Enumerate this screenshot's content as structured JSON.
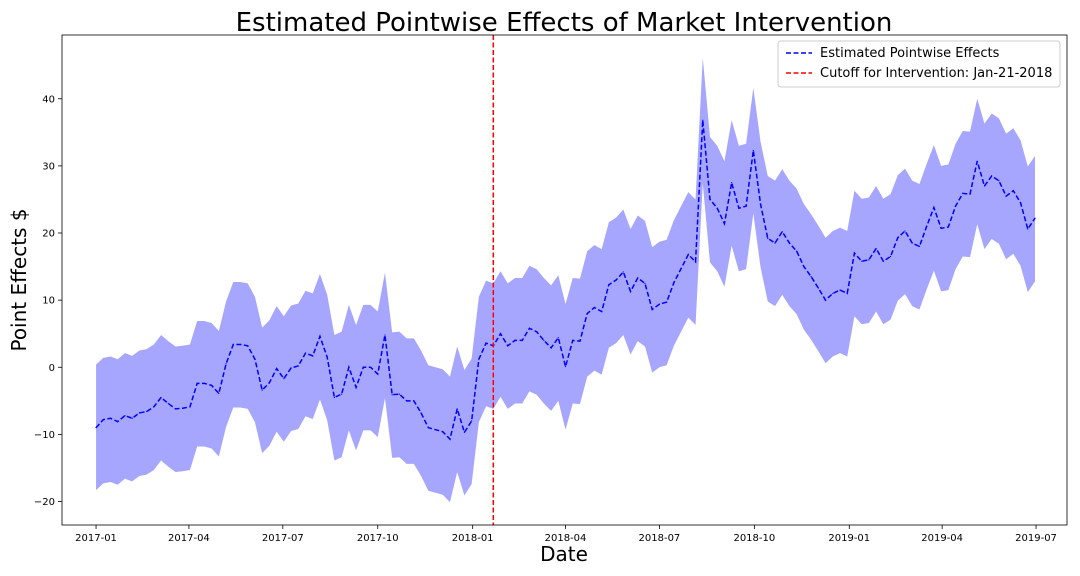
{
  "chart_data": {
    "type": "line",
    "title": "Estimated Pointwise Effects of Market Intervention",
    "xlabel": "Date",
    "ylabel": "Point Effects $",
    "ylim": [
      -23.5,
      49.5
    ],
    "xlim": [
      "2016-11-29",
      "2019-07-31"
    ],
    "x_ticks": [
      "2017-01",
      "2017-04",
      "2017-07",
      "2017-10",
      "2018-01",
      "2018-04",
      "2018-07",
      "2018-10",
      "2019-01",
      "2019-04",
      "2019-07"
    ],
    "y_ticks": [
      -20,
      -10,
      0,
      10,
      20,
      30,
      40
    ],
    "grid": false,
    "legend_position": "top-right",
    "cutoff": {
      "date": "2018-01-21",
      "label": "Cutoff for Intervention: Jan-21-2018",
      "color": "#ff0000"
    },
    "band_color": "#a6a6ff",
    "series": [
      {
        "name": "Estimated Pointwise Effects",
        "color": "#0000ff",
        "points": [
          [
            "2017-01-01",
            -9.0,
            -18.3,
            0.4
          ],
          [
            "2017-01-08",
            -7.8,
            -17.3,
            1.4
          ],
          [
            "2017-01-15",
            -7.6,
            -17.1,
            1.6
          ],
          [
            "2017-01-22",
            -8.1,
            -17.5,
            1.2
          ],
          [
            "2017-01-29",
            -7.2,
            -16.6,
            2.1
          ],
          [
            "2017-02-05",
            -7.6,
            -17.0,
            1.7
          ],
          [
            "2017-02-12",
            -6.8,
            -16.2,
            2.5
          ],
          [
            "2017-02-19",
            -6.6,
            -16.0,
            2.7
          ],
          [
            "2017-02-26",
            -5.9,
            -15.3,
            3.4
          ],
          [
            "2017-03-05",
            -4.5,
            -13.9,
            4.8
          ],
          [
            "2017-03-12",
            -5.4,
            -14.8,
            3.9
          ],
          [
            "2017-03-19",
            -6.2,
            -15.6,
            3.1
          ],
          [
            "2017-03-26",
            -6.1,
            -15.5,
            3.2
          ],
          [
            "2017-04-02",
            -5.9,
            -15.3,
            3.4
          ],
          [
            "2017-04-09",
            -2.4,
            -11.8,
            6.9
          ],
          [
            "2017-04-16",
            -2.4,
            -11.8,
            6.9
          ],
          [
            "2017-04-23",
            -2.7,
            -12.1,
            6.6
          ],
          [
            "2017-04-30",
            -3.9,
            -13.3,
            5.4
          ],
          [
            "2017-05-07",
            0.5,
            -8.9,
            9.8
          ],
          [
            "2017-05-14",
            3.4,
            -6.0,
            12.7
          ],
          [
            "2017-05-21",
            3.4,
            -6.0,
            12.7
          ],
          [
            "2017-05-28",
            3.2,
            -6.2,
            12.5
          ],
          [
            "2017-06-04",
            1.2,
            -8.2,
            10.5
          ],
          [
            "2017-06-11",
            -3.4,
            -12.8,
            5.9
          ],
          [
            "2017-06-18",
            -2.3,
            -11.7,
            7.0
          ],
          [
            "2017-06-25",
            -0.2,
            -9.6,
            9.1
          ],
          [
            "2017-07-02",
            -1.7,
            -11.1,
            7.6
          ],
          [
            "2017-07-09",
            -0.1,
            -9.5,
            9.2
          ],
          [
            "2017-07-16",
            0.2,
            -9.2,
            9.5
          ],
          [
            "2017-07-23",
            2.1,
            -7.3,
            11.4
          ],
          [
            "2017-07-30",
            1.7,
            -7.7,
            11.0
          ],
          [
            "2017-08-06",
            4.6,
            -4.8,
            13.9
          ],
          [
            "2017-08-13",
            1.5,
            -7.9,
            10.8
          ],
          [
            "2017-08-20",
            -4.5,
            -13.9,
            4.8
          ],
          [
            "2017-08-27",
            -4.0,
            -13.4,
            5.3
          ],
          [
            "2017-09-03",
            0.0,
            -9.4,
            9.3
          ],
          [
            "2017-09-10",
            -3.0,
            -12.4,
            6.3
          ],
          [
            "2017-09-17",
            0.0,
            -9.4,
            9.3
          ],
          [
            "2017-09-24",
            0.0,
            -9.4,
            9.3
          ],
          [
            "2017-10-01",
            -1.0,
            -10.4,
            8.3
          ],
          [
            "2017-10-08",
            4.8,
            -4.6,
            14.1
          ],
          [
            "2017-10-15",
            -4.1,
            -13.5,
            5.2
          ],
          [
            "2017-10-22",
            -4.0,
            -13.4,
            5.3
          ],
          [
            "2017-10-29",
            -5.0,
            -14.4,
            4.3
          ],
          [
            "2017-11-05",
            -5.0,
            -14.4,
            4.3
          ],
          [
            "2017-11-12",
            -6.8,
            -16.2,
            2.5
          ],
          [
            "2017-11-19",
            -9.0,
            -18.4,
            0.3
          ],
          [
            "2017-11-26",
            -9.3,
            -18.7,
            0.0
          ],
          [
            "2017-12-03",
            -9.6,
            -19.0,
            -0.3
          ],
          [
            "2017-12-10",
            -10.7,
            -20.1,
            -1.4
          ],
          [
            "2017-12-17",
            -6.2,
            -15.6,
            3.1
          ],
          [
            "2017-12-24",
            -9.7,
            -19.1,
            -0.4
          ],
          [
            "2017-12-31",
            -8.0,
            -17.4,
            1.3
          ],
          [
            "2018-01-07",
            1.2,
            -8.2,
            10.5
          ],
          [
            "2018-01-14",
            3.6,
            -5.8,
            12.9
          ],
          [
            "2018-01-21",
            3.2,
            -6.2,
            12.5
          ],
          [
            "2018-01-28",
            5.0,
            -4.4,
            14.3
          ],
          [
            "2018-02-04",
            3.2,
            -6.2,
            12.5
          ],
          [
            "2018-02-11",
            4.0,
            -5.4,
            13.3
          ],
          [
            "2018-02-18",
            4.0,
            -5.4,
            13.3
          ],
          [
            "2018-02-25",
            5.8,
            -3.6,
            15.1
          ],
          [
            "2018-03-04",
            5.3,
            -4.1,
            14.6
          ],
          [
            "2018-03-11",
            4.0,
            -5.4,
            13.3
          ],
          [
            "2018-03-18",
            2.9,
            -6.5,
            12.2
          ],
          [
            "2018-03-25",
            4.4,
            -5.0,
            13.7
          ],
          [
            "2018-04-01",
            0.1,
            -9.3,
            9.4
          ],
          [
            "2018-04-08",
            4.0,
            -5.4,
            13.3
          ],
          [
            "2018-04-15",
            3.9,
            -5.5,
            13.2
          ],
          [
            "2018-04-22",
            8.0,
            -1.4,
            17.3
          ],
          [
            "2018-04-29",
            8.9,
            -0.5,
            18.2
          ],
          [
            "2018-05-06",
            8.3,
            -1.1,
            17.6
          ],
          [
            "2018-05-13",
            12.3,
            2.9,
            21.6
          ],
          [
            "2018-05-20",
            13.0,
            3.6,
            22.3
          ],
          [
            "2018-05-27",
            14.2,
            4.8,
            23.5
          ],
          [
            "2018-06-03",
            11.3,
            1.9,
            20.6
          ],
          [
            "2018-06-10",
            13.3,
            3.9,
            22.6
          ],
          [
            "2018-06-17",
            12.5,
            3.1,
            21.8
          ],
          [
            "2018-06-24",
            8.6,
            -0.8,
            17.9
          ],
          [
            "2018-07-01",
            9.4,
            0.0,
            18.7
          ],
          [
            "2018-07-08",
            9.7,
            0.3,
            19.0
          ],
          [
            "2018-07-15",
            12.6,
            3.2,
            21.9
          ],
          [
            "2018-07-22",
            14.7,
            5.3,
            24.0
          ],
          [
            "2018-07-29",
            16.8,
            7.4,
            26.1
          ],
          [
            "2018-08-05",
            15.7,
            6.3,
            25.0
          ],
          [
            "2018-08-12",
            36.8,
            27.4,
            46.1
          ],
          [
            "2018-08-19",
            25.0,
            15.6,
            34.3
          ],
          [
            "2018-08-26",
            23.7,
            14.3,
            33.0
          ],
          [
            "2018-09-02",
            21.4,
            12.0,
            30.7
          ],
          [
            "2018-09-09",
            27.5,
            18.1,
            36.8
          ],
          [
            "2018-09-16",
            23.7,
            14.3,
            33.0
          ],
          [
            "2018-09-23",
            24.0,
            14.6,
            33.3
          ],
          [
            "2018-09-30",
            32.3,
            22.9,
            41.6
          ],
          [
            "2018-10-07",
            24.3,
            14.9,
            33.6
          ],
          [
            "2018-10-14",
            19.2,
            9.8,
            28.5
          ],
          [
            "2018-10-21",
            18.5,
            9.1,
            27.8
          ],
          [
            "2018-10-28",
            20.2,
            10.8,
            29.5
          ],
          [
            "2018-11-04",
            18.5,
            9.1,
            27.8
          ],
          [
            "2018-11-11",
            17.3,
            7.9,
            26.6
          ],
          [
            "2018-11-18",
            15.0,
            5.6,
            24.3
          ],
          [
            "2018-11-25",
            13.5,
            4.1,
            22.8
          ],
          [
            "2018-12-02",
            11.8,
            2.4,
            21.1
          ],
          [
            "2018-12-09",
            10.0,
            0.6,
            19.3
          ],
          [
            "2018-12-16",
            11.0,
            1.6,
            20.3
          ],
          [
            "2018-12-23",
            11.5,
            2.1,
            20.8
          ],
          [
            "2018-12-30",
            11.0,
            1.6,
            20.3
          ],
          [
            "2019-01-06",
            17.0,
            7.6,
            26.3
          ],
          [
            "2019-01-13",
            15.8,
            6.4,
            25.1
          ],
          [
            "2019-01-20",
            16.0,
            6.6,
            25.3
          ],
          [
            "2019-01-27",
            17.7,
            8.3,
            27.0
          ],
          [
            "2019-02-03",
            15.8,
            6.4,
            25.1
          ],
          [
            "2019-02-10",
            16.5,
            7.1,
            25.8
          ],
          [
            "2019-02-17",
            19.3,
            9.9,
            28.6
          ],
          [
            "2019-02-24",
            20.3,
            10.9,
            29.6
          ],
          [
            "2019-03-03",
            18.5,
            9.1,
            27.8
          ],
          [
            "2019-03-10",
            18.0,
            8.6,
            27.3
          ],
          [
            "2019-03-17",
            21.0,
            11.6,
            30.3
          ],
          [
            "2019-03-24",
            23.8,
            14.4,
            33.1
          ],
          [
            "2019-03-31",
            20.7,
            11.3,
            30.0
          ],
          [
            "2019-04-07",
            20.9,
            11.5,
            30.2
          ],
          [
            "2019-04-14",
            24.0,
            14.6,
            33.3
          ],
          [
            "2019-04-21",
            25.9,
            16.5,
            35.2
          ],
          [
            "2019-04-28",
            25.8,
            16.4,
            35.1
          ],
          [
            "2019-05-05",
            30.7,
            21.3,
            40.0
          ],
          [
            "2019-05-12",
            27.0,
            17.6,
            36.3
          ],
          [
            "2019-05-19",
            28.5,
            19.1,
            37.8
          ],
          [
            "2019-05-26",
            27.8,
            18.4,
            37.1
          ],
          [
            "2019-06-02",
            25.5,
            16.1,
            34.8
          ],
          [
            "2019-06-09",
            26.3,
            16.9,
            35.6
          ],
          [
            "2019-06-16",
            24.5,
            15.1,
            33.8
          ],
          [
            "2019-06-23",
            20.6,
            11.2,
            29.9
          ],
          [
            "2019-06-30",
            22.2,
            12.8,
            31.5
          ]
        ]
      }
    ]
  }
}
